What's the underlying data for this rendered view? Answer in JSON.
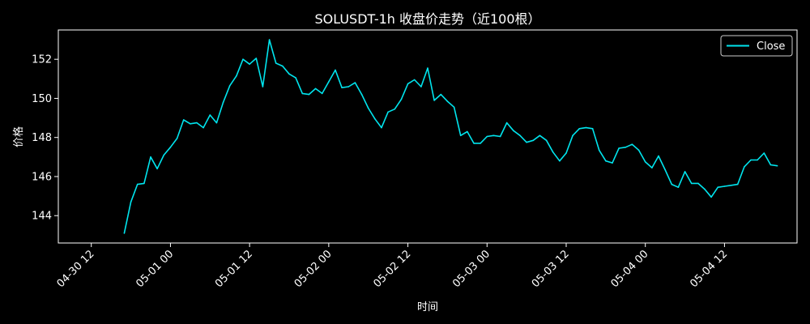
{
  "chart_data": {
    "type": "line",
    "title": "SOLUSDT-1h 收盘价走势（近100根）",
    "xlabel": "时间",
    "ylabel": "价格",
    "legend": {
      "placement": "top-right",
      "entries": [
        "Close"
      ]
    },
    "grid": false,
    "x_start": "2025-04-30 17:00",
    "x_step_hours": 1,
    "xlim": [
      "2025-04-30 07:00",
      "2025-05-04 23:00"
    ],
    "ylim": [
      142.6,
      153.5
    ],
    "x_ticks": [
      "04-30 12",
      "05-01 00",
      "05-01 12",
      "05-02 00",
      "05-02 12",
      "05-03 00",
      "05-03 12",
      "05-04 00",
      "05-04 12"
    ],
    "y_ticks": [
      144,
      146,
      148,
      150,
      152
    ],
    "colors": {
      "background": "#000000",
      "line": "#00e5ee",
      "text": "#ffffff"
    },
    "series": [
      {
        "name": "Close",
        "values": [
          143.1,
          144.7,
          145.6,
          145.65,
          147.0,
          146.4,
          147.1,
          147.5,
          147.95,
          148.9,
          148.7,
          148.75,
          148.5,
          149.15,
          148.75,
          149.8,
          150.65,
          151.15,
          152.0,
          151.75,
          152.05,
          150.6,
          153.0,
          151.8,
          151.65,
          151.25,
          151.05,
          150.25,
          150.2,
          150.5,
          150.25,
          150.85,
          151.45,
          150.55,
          150.6,
          150.8,
          150.2,
          149.5,
          148.95,
          148.5,
          149.3,
          149.45,
          149.95,
          150.75,
          150.95,
          150.6,
          151.55,
          149.9,
          150.2,
          149.85,
          149.55,
          148.1,
          148.3,
          147.7,
          147.7,
          148.05,
          148.1,
          148.05,
          148.75,
          148.35,
          148.1,
          147.75,
          147.85,
          148.1,
          147.85,
          147.25,
          146.8,
          147.2,
          148.1,
          148.45,
          148.5,
          148.45,
          147.35,
          146.8,
          146.7,
          147.45,
          147.5,
          147.65,
          147.35,
          146.75,
          146.45,
          147.05,
          146.35,
          145.6,
          145.45,
          146.25,
          145.65,
          145.65,
          145.35,
          144.95,
          145.45,
          145.5,
          145.55,
          145.6,
          146.5,
          146.85,
          146.85,
          147.2,
          146.6,
          146.55
        ]
      }
    ]
  }
}
